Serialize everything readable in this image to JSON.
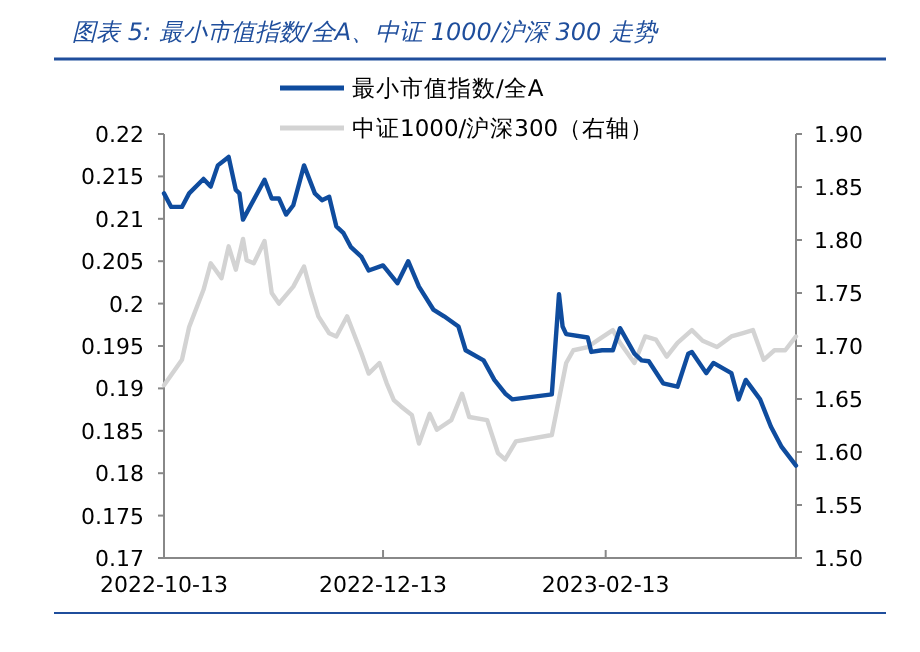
{
  "chart_data": {
    "type": "line",
    "title": "图表 5: 最小市值指数/全A、中证 1000/沪深 300 走势",
    "legend": "top",
    "xlim": [
      "2022-10-13",
      "2023-04-07"
    ],
    "xticks": [
      "2022-10-13",
      "2022-12-13",
      "2023-02-13"
    ],
    "ylim": [
      0.17,
      0.22
    ],
    "yticks": [
      0.17,
      0.175,
      0.18,
      0.185,
      0.19,
      0.195,
      0.2,
      0.205,
      0.21,
      0.215,
      0.22
    ],
    "y2lim": [
      1.5,
      1.9
    ],
    "y2ticks": [
      {
        "value": 1.5,
        "label": "1.50"
      },
      1.55,
      {
        "value": 1.6,
        "label": "1.60"
      },
      1.65,
      {
        "value": 1.7,
        "label": "1.70"
      },
      1.75,
      {
        "value": 1.8,
        "label": "1.80"
      },
      1.85,
      {
        "value": 1.9,
        "label": "1.90"
      }
    ],
    "series": [
      {
        "name": "最小市值指数/全A",
        "type": "line",
        "color": "#0f4c9e",
        "x": [
          "2022-10-13",
          "2022-10-15",
          "2022-10-18",
          "2022-10-20",
          "2022-10-24",
          "2022-10-26",
          "2022-10-28",
          "2022-10-31",
          "2022-11-02",
          "2022-11-03",
          "2022-11-04",
          "2022-11-10",
          "2022-11-12",
          "2022-11-14",
          "2022-11-16",
          "2022-11-18",
          "2022-11-21",
          "2022-11-24",
          "2022-11-26",
          "2022-11-28",
          "2022-11-30",
          "2022-12-02",
          "2022-12-04",
          "2022-12-07",
          "2022-12-09",
          "2022-12-13",
          "2022-12-17",
          "2022-12-20",
          "2022-12-23",
          "2022-12-27",
          "2022-12-30",
          "2023-01-03",
          "2023-01-05",
          "2023-01-10",
          "2023-01-13",
          "2023-01-16",
          "2023-01-18",
          "2023-01-29",
          "2023-01-31",
          "2023-02-01",
          "2023-02-02",
          "2023-02-08",
          "2023-02-09",
          "2023-02-12",
          "2023-02-15",
          "2023-02-17",
          "2023-02-21",
          "2023-02-23",
          "2023-02-25",
          "2023-03-01",
          "2023-03-05",
          "2023-03-08",
          "2023-03-09",
          "2023-03-13",
          "2023-03-15",
          "2023-03-20",
          "2023-03-22",
          "2023-03-24",
          "2023-03-28",
          "2023-03-31",
          "2023-04-03",
          "2023-04-07"
        ],
        "values": [
          0.213,
          0.2114,
          0.2114,
          0.213,
          0.2147,
          0.2138,
          0.2163,
          0.2173,
          0.2134,
          0.213,
          0.2099,
          0.2146,
          0.2124,
          0.2124,
          0.2105,
          0.2116,
          0.2163,
          0.213,
          0.2122,
          0.2126,
          0.2091,
          0.2083,
          0.2067,
          0.2055,
          0.2039,
          0.2045,
          0.2024,
          0.205,
          0.202,
          0.1993,
          0.1985,
          0.1973,
          0.1945,
          0.1933,
          0.191,
          0.1894,
          0.1887,
          0.1893,
          0.2011,
          0.1973,
          0.1964,
          0.196,
          0.1943,
          0.1945,
          0.1945,
          0.1971,
          0.1941,
          0.1933,
          0.1932,
          0.1906,
          0.1902,
          0.1941,
          0.1943,
          0.1918,
          0.193,
          0.1918,
          0.1887,
          0.191,
          0.1887,
          0.1855,
          0.1831,
          0.1809
        ]
      },
      {
        "name": "中证1000/沪深300（右轴）",
        "type": "line",
        "axis": "y2",
        "color": "#d3d3d3",
        "x": [
          "2022-10-13",
          "2022-10-18",
          "2022-10-20",
          "2022-10-24",
          "2022-10-26",
          "2022-10-29",
          "2022-10-31",
          "2022-11-02",
          "2022-11-04",
          "2022-11-05",
          "2022-11-07",
          "2022-11-10",
          "2022-11-12",
          "2022-11-14",
          "2022-11-18",
          "2022-11-21",
          "2022-11-23",
          "2022-11-25",
          "2022-11-28",
          "2022-11-30",
          "2022-12-03",
          "2022-12-07",
          "2022-12-09",
          "2022-12-12",
          "2022-12-14",
          "2022-12-16",
          "2022-12-18",
          "2022-12-21",
          "2022-12-23",
          "2022-12-26",
          "2022-12-28",
          "2023-01-01",
          "2023-01-04",
          "2023-01-06",
          "2023-01-11",
          "2023-01-14",
          "2023-01-16",
          "2023-01-19",
          "2023-01-29",
          "2023-02-02",
          "2023-02-04",
          "2023-02-08",
          "2023-02-11",
          "2023-02-15",
          "2023-02-17",
          "2023-02-21",
          "2023-02-24",
          "2023-02-27",
          "2023-03-02",
          "2023-03-05",
          "2023-03-09",
          "2023-03-12",
          "2023-03-16",
          "2023-03-20",
          "2023-03-23",
          "2023-03-26",
          "2023-03-29",
          "2023-04-01",
          "2023-04-04",
          "2023-04-07"
        ],
        "values": [
          1.663,
          1.687,
          1.718,
          1.753,
          1.778,
          1.764,
          1.794,
          1.772,
          1.801,
          1.781,
          1.778,
          1.799,
          1.75,
          1.74,
          1.756,
          1.775,
          1.75,
          1.728,
          1.712,
          1.709,
          1.728,
          1.693,
          1.674,
          1.684,
          1.665,
          1.649,
          1.643,
          1.635,
          1.608,
          1.636,
          1.621,
          1.63,
          1.655,
          1.633,
          1.63,
          1.599,
          1.593,
          1.61,
          1.616,
          1.684,
          1.696,
          1.699,
          1.706,
          1.715,
          1.703,
          1.684,
          1.709,
          1.706,
          1.69,
          1.703,
          1.715,
          1.705,
          1.699,
          1.709,
          1.712,
          1.715,
          1.687,
          1.696,
          1.696,
          1.709
        ]
      }
    ]
  }
}
